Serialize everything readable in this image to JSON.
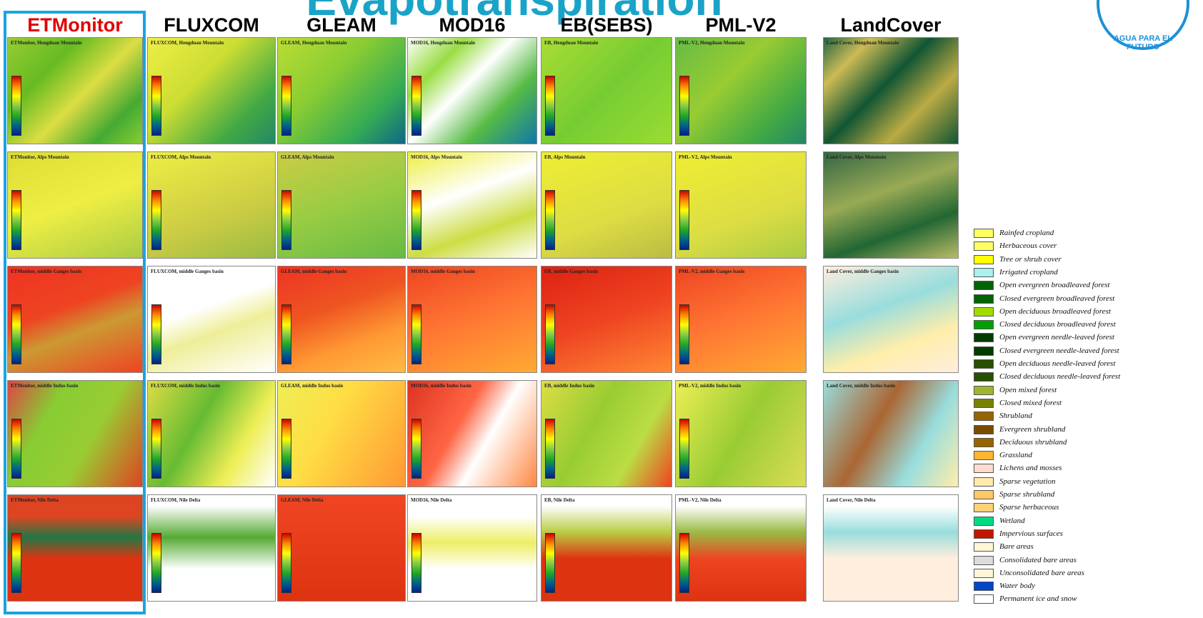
{
  "title": "Evapotranspiration",
  "columns": [
    "ETMonitor",
    "FLUXCOM",
    "GLEAM",
    "MOD16",
    "EB(SEBS)",
    "PML-V2",
    "LandCover"
  ],
  "rows": [
    {
      "panels": [
        "ETMonitor, Hengduan Mountain",
        "FLUXCOM, Hengduan Mountain",
        "GLEAM, Hengduan Mountain",
        "MOD16, Hengduan Mountain",
        "EB, Hengduan Mountain",
        "PML-V2, Hengduan Mountain",
        "Land Cover, Hengduan Mountain"
      ]
    },
    {
      "panels": [
        "ETMonitor, Alps Mountain",
        "FLUXCOM, Alps Mountain",
        "GLEAM, Alps Mountain",
        "MOD16, Alps Mountain",
        "EB, Alps Mountain",
        "PML-V2, Alps Mountain",
        "Land Cover, Alps Mountain"
      ]
    },
    {
      "panels": [
        "ETMonitor, middle Ganges basin",
        "FLUXCOM, middle Ganges basin",
        "GLEAM, middle Ganges basin",
        "MOD16, middle Ganges basin",
        "EB, middle Ganges basin",
        "PML-V2, middle Ganges basin",
        "Land Cover, middle Ganges basin"
      ]
    },
    {
      "panels": [
        "ETMonitor, middle Indus basin",
        "FLUXCOM, middle Indus basin",
        "GLEAM, middle Indus basin",
        "MOD16, middle Indus basin",
        "EB, middle Indus basin",
        "PML-V2, middle Indus basin",
        "Land Cover, middle Indus basin"
      ]
    },
    {
      "panels": [
        "ETMonitor, Nile Delta",
        "FLUXCOM, Nile Delta",
        "GLEAM, Nile Delta",
        "MOD16, Nile Delta",
        "EB, Nile Delta",
        "PML-V2, Nile Delta",
        "Land Cover, Nile Delta"
      ]
    }
  ],
  "legend": [
    {
      "label": "Rainfed cropland",
      "color": "#ffff64"
    },
    {
      "label": "Herbaceous cover",
      "color": "#ffff64"
    },
    {
      "label": "Tree or shrub cover",
      "color": "#ffff00"
    },
    {
      "label": "Irrigated cropland",
      "color": "#aaf0f0"
    },
    {
      "label": "Open evergreen broadleaved forest",
      "color": "#006400"
    },
    {
      "label": "Closed evergreen broadleaved forest",
      "color": "#006400"
    },
    {
      "label": "Open deciduous broadleaved forest",
      "color": "#a0dc00"
    },
    {
      "label": "Closed deciduous broadleaved forest",
      "color": "#00a000"
    },
    {
      "label": "Open evergreen needle-leaved forest",
      "color": "#003c00"
    },
    {
      "label": "Closed evergreen needle-leaved forest",
      "color": "#003c00"
    },
    {
      "label": "Open deciduous needle-leaved forest",
      "color": "#285000"
    },
    {
      "label": "Closed deciduous needle-leaved forest",
      "color": "#285000"
    },
    {
      "label": "Open mixed forest",
      "color": "#a0b432"
    },
    {
      "label": "Closed mixed forest",
      "color": "#788200"
    },
    {
      "label": "Shrubland",
      "color": "#966400"
    },
    {
      "label": "Evergreen shrubland",
      "color": "#784b00"
    },
    {
      "label": "Deciduous shrubland",
      "color": "#966400"
    },
    {
      "label": "Grassland",
      "color": "#ffb432"
    },
    {
      "label": "Lichens and mosses",
      "color": "#ffdcd2"
    },
    {
      "label": "Sparse vegetation",
      "color": "#ffebaf"
    },
    {
      "label": "Sparse shrubland",
      "color": "#ffc864"
    },
    {
      "label": "Sparse herbaceous",
      "color": "#ffd278"
    },
    {
      "label": "Wetland",
      "color": "#00dc82"
    },
    {
      "label": "Impervious surfaces",
      "color": "#c31400"
    },
    {
      "label": "Bare areas",
      "color": "#fff5d7"
    },
    {
      "label": "Consolidated bare areas",
      "color": "#dcdcdc"
    },
    {
      "label": "Unconsolidated bare areas",
      "color": "#fff5d7"
    },
    {
      "label": "Water body",
      "color": "#0046c8"
    },
    {
      "label": "Permanent ice and snow",
      "color": "#ffffff"
    }
  ],
  "logo": "AGUA PARA EL FUTURO"
}
